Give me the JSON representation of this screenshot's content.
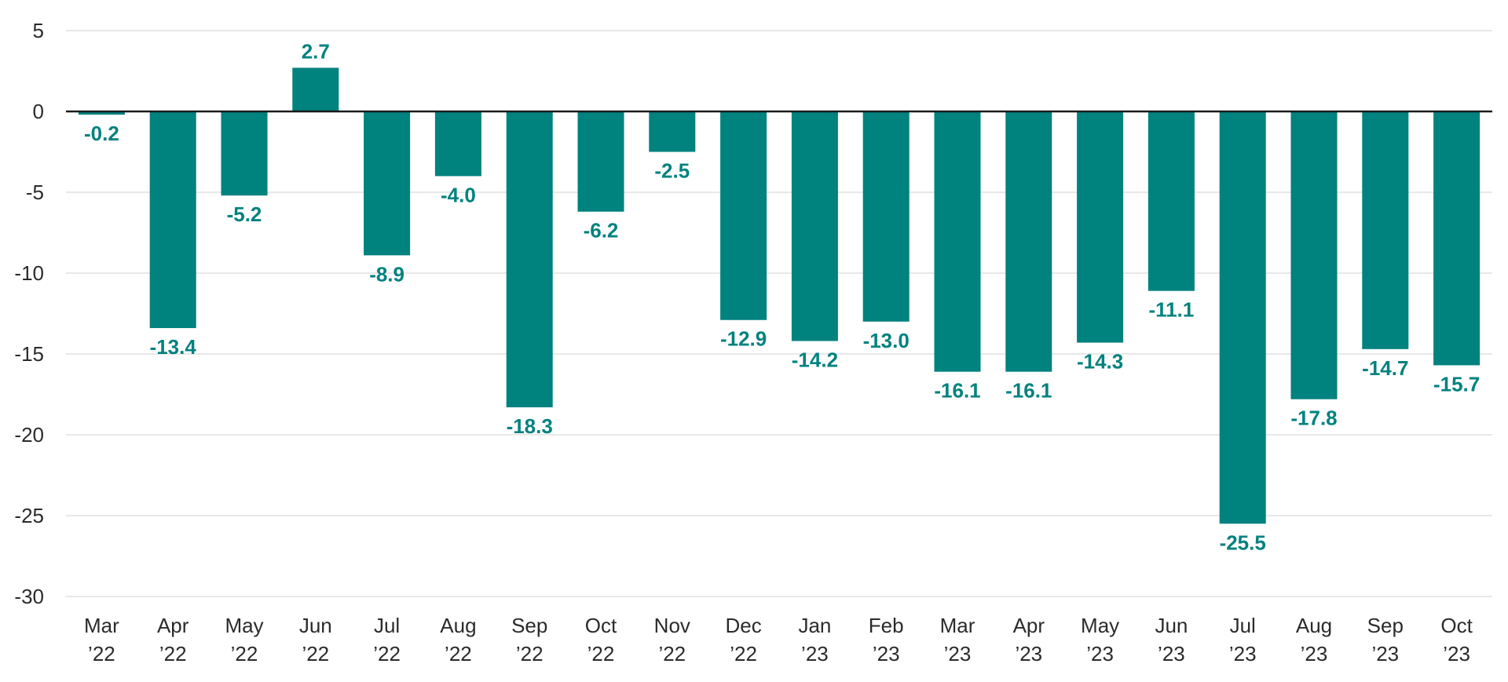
{
  "chart_data": {
    "type": "bar",
    "title": "",
    "xlabel": "",
    "ylabel": "",
    "ylim": [
      -30,
      5
    ],
    "yticks": [
      5,
      0,
      -5,
      -10,
      -15,
      -20,
      -25,
      -30
    ],
    "grid": true,
    "bar_color": "#00827f",
    "label_color": "#00827f",
    "categories": [
      {
        "month": "Mar",
        "year": "’22"
      },
      {
        "month": "Apr",
        "year": "’22"
      },
      {
        "month": "May",
        "year": "’22"
      },
      {
        "month": "Jun",
        "year": "’22"
      },
      {
        "month": "Jul",
        "year": "’22"
      },
      {
        "month": "Aug",
        "year": "’22"
      },
      {
        "month": "Sep",
        "year": "’22"
      },
      {
        "month": "Oct",
        "year": "’22"
      },
      {
        "month": "Nov",
        "year": "’22"
      },
      {
        "month": "Dec",
        "year": "’22"
      },
      {
        "month": "Jan",
        "year": "’23"
      },
      {
        "month": "Feb",
        "year": "’23"
      },
      {
        "month": "Mar",
        "year": "’23"
      },
      {
        "month": "Apr",
        "year": "’23"
      },
      {
        "month": "May",
        "year": "’23"
      },
      {
        "month": "Jun",
        "year": "’23"
      },
      {
        "month": "Jul",
        "year": "’23"
      },
      {
        "month": "Aug",
        "year": "’23"
      },
      {
        "month": "Sep",
        "year": "’23"
      },
      {
        "month": "Oct",
        "year": "’23"
      }
    ],
    "values": [
      -0.2,
      -13.4,
      -5.2,
      2.7,
      -8.9,
      -4.0,
      -18.3,
      -6.2,
      -2.5,
      -12.9,
      -14.2,
      -13.0,
      -16.1,
      -16.1,
      -14.3,
      -11.1,
      -25.5,
      -17.8,
      -14.7,
      -15.7
    ],
    "data_labels": [
      "-0.2",
      "-13.4",
      "-5.2",
      "2.7",
      "-8.9",
      "-4.0",
      "-18.3",
      "-6.2",
      "-2.5",
      "-12.9",
      "-14.2",
      "-13.0",
      "-16.1",
      "-16.1",
      "-14.3",
      "-11.1",
      "-25.5",
      "-17.8",
      "-14.7",
      "-15.7"
    ]
  }
}
